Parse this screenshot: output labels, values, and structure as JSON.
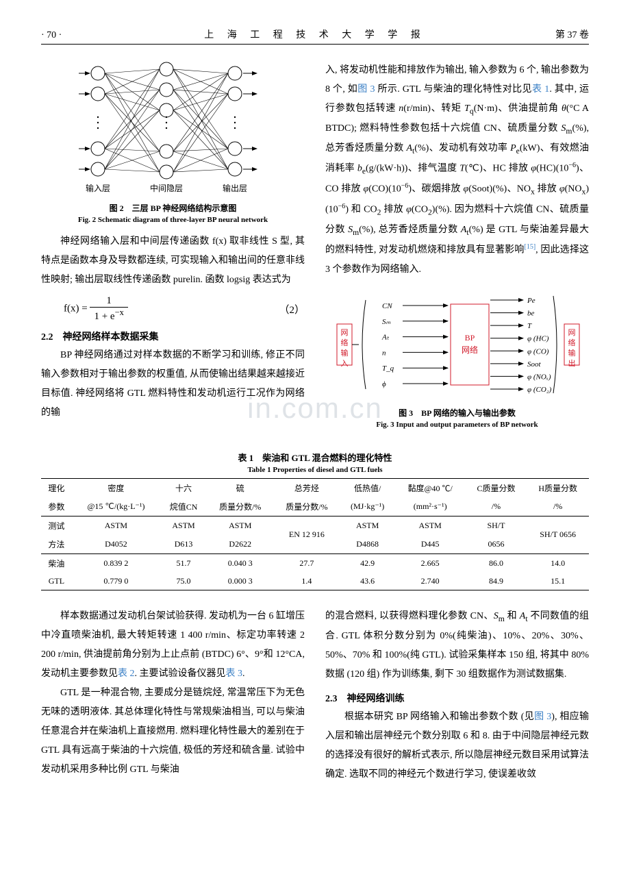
{
  "header": {
    "page_label_left": "· 70 ·",
    "journal_title": "上 海 工 程 技 术 大 学 学 报",
    "volume_label": "第 37 卷"
  },
  "fig2": {
    "caption_cn": "图 2　三层 BP 神经网络结构示意图",
    "caption_en": "Fig. 2   Schematic diagram of three-layer BP neural network",
    "layer_labels": [
      "输入层",
      "中间隐层",
      "输出层"
    ],
    "node_fill": "#ffffff",
    "node_stroke": "#000000",
    "edge_color": "#000000",
    "arrow_color": "#000000",
    "layer_x": [
      40,
      140,
      240
    ],
    "input_y": [
      18,
      48,
      128,
      158
    ],
    "hidden_y": [
      12,
      42,
      72,
      132,
      162
    ],
    "output_y": [
      18,
      48,
      128,
      158
    ],
    "dots_y": [
      82,
      90,
      98
    ],
    "node_r": 10
  },
  "intro_para": "神经网络输入层和中间层传递函数 f(x) 取非线性 S 型, 其特点是函数本身及导数都连续, 可实现输入和输出间的任意非线性映射; 输出层取线性传递函数 purelin. 函数 logsig 表达式为",
  "equation": {
    "lhs": "f(x) =",
    "num": "1",
    "den": "1 + e",
    "den_sup": "−x",
    "num_label": "（2）"
  },
  "sec22_title": "2.2　神经网络样本数据采集",
  "sec22_para": "BP 神经网络通过对样本数据的不断学习和训练, 修正不同输入参数相对于输出参数的权重值, 从而使输出结果越来越接近目标值. 神经网络将 GTL 燃料特性和发动机运行工况作为网络的输",
  "right_para": "入, 将发动机性能和排放作为输出, 输入参数为 6 个, 输出参数为 8 个, 如<span class=\"blue\">图 3</span> 所示. GTL 与柴油的理化特性对比见<span class=\"blue\">表 1</span>. 其中, 运行参数包括转速 <span class=\"it\">n</span>(r/min)、转矩 <span class=\"it\">T</span><sub>q</sub>(N·m)、供油提前角 <span class=\"it\">θ</span>(°C A BTDC); 燃料特性参数包括十六烷值 CN、硫质量分数 <span class=\"it\">S</span><sub>m</sub>(%), 总芳香烃质量分数 <span class=\"it\">A</span><sub>t</sub>(%)、发动机有效功率 <span class=\"it\">P</span><sub>e</sub>(kW)、有效燃油消耗率 <span class=\"it\">b</span><sub>e</sub>(g/(kW·h))、排气温度 <span class=\"it\">T</span>(℃)、HC 排放 <span class=\"it\">φ</span>(HC)(10<sup>−6</sup>)、CO 排放 <span class=\"it\">φ</span>(CO)(10<sup>−6</sup>)、碳烟排放 <span class=\"it\">φ</span>(Soot)(%)、NO<sub>x</sub> 排放 <span class=\"it\">φ</span>(NO<sub>x</sub>)(10<sup>−6</sup>) 和 CO<sub>2</sub> 排放 <span class=\"it\">φ</span>(CO<sub>2</sub>)(%). 因为燃料十六烷值 CN、硫质量分数 <span class=\"it\">S</span><sub>m</sub>(%), 总芳香烃质量分数 <span class=\"it\">A</span><sub>t</sub>(%) 是 GTL 与柴油差异最大的燃料特性, 对发动机燃烧和排放具有显著影响<sup class=\"blue\">[15]</sup>, 因此选择这 3 个参数作为网络输入.",
  "fig3": {
    "caption_cn": "图 3　BP 网络的输入与输出参数",
    "caption_en": "Fig. 3   Input and output parameters of BP network",
    "left_box": "网络输入",
    "center_box_top": "BP",
    "center_box_bottom": "网络",
    "right_box": "网络输出",
    "inputs": [
      "CN",
      "Sₘ",
      "Aₜ",
      "n",
      "T_q",
      "ϕ"
    ],
    "outputs": [
      "Pe",
      "be",
      "T",
      "φ (HC)",
      "φ (CO)",
      "Soot",
      "φ (NOₓ)",
      "φ (CO₂)"
    ],
    "box_stroke": "#d11a2a",
    "text_color_red": "#d11a2a",
    "line_color": "#000000"
  },
  "table1": {
    "caption_cn": "表 1　柴油和 GTL 混合燃料的理化特性",
    "caption_en": "Table 1   Properties of diesel and GTL fuels",
    "head_row1": [
      "理化",
      "密度",
      "十六",
      "硫",
      "总芳烃",
      "低热值/",
      "黏度@40 ℃/",
      "C质量分数",
      "H质量分数"
    ],
    "head_row2": [
      "参数",
      "@15 ℃/(kg·L⁻¹)",
      "烷值CN",
      "质量分数/%",
      "质量分数/%",
      "(MJ·kg⁻¹)",
      "(mm²·s⁻¹)",
      "/%",
      "/%"
    ],
    "method_rows": [
      [
        "测试",
        "ASTM",
        "ASTM",
        "ASTM",
        "",
        "ASTM",
        "ASTM",
        "SH/T",
        ""
      ],
      [
        "方法",
        "D4052",
        "D613",
        "D2622",
        "EN 12 916",
        "D4868",
        "D445",
        "0656",
        "SH/T 0656"
      ]
    ],
    "data_rows": [
      [
        "柴油",
        "0.839 2",
        "51.7",
        "0.040 3",
        "27.7",
        "42.9",
        "2.665",
        "86.0",
        "14.0"
      ],
      [
        "GTL",
        "0.779 0",
        "75.0",
        "0.000 3",
        "1.4",
        "43.6",
        "2.740",
        "84.9",
        "15.1"
      ]
    ]
  },
  "bottom_left_p1": "样本数据通过发动机台架试验获得. 发动机为一台 6 缸增压中冷直喷柴油机, 最大转矩转速 1 400 r/min、标定功率转速 2 200 r/min, 供油提前角分别为上止点前 (BTDC) 6°、9°和 12°CA, 发动机主要参数见<span class=\"blue\">表 2</span>. 主要试验设备仪器见<span class=\"blue\">表 3</span>.",
  "bottom_left_p2": "GTL 是一种混合物, 主要成分是链烷烃, 常温常压下为无色无味的透明液体. 其总体理化特性与常规柴油相当, 可以与柴油任意混合并在柴油机上直接燃用. 燃料理化特性最大的差别在于 GTL 具有远高于柴油的十六烷值, 极低的芳烃和硫含量. 试验中发动机采用多种比例 GTL 与柴油",
  "bottom_right_p1": "的混合燃料, 以获得燃料理化参数 CN、<span class=\"it\">S</span><sub>m</sub> 和 <span class=\"it\">A</span><sub>t</sub> 不同数值的组合. GTL 体积分数分别为 0%(纯柴油)、10%、20%、30%、50%、70% 和 100%(纯 GTL). 试验采集样本 150 组, 将其中 80% 数据 (120 组) 作为训练集, 剩下 30 组数据作为测试数据集.",
  "sec23_title": "2.3　神经网络训练",
  "bottom_right_p2": "根据本研究 BP 网络输入和输出参数个数 (见<span class=\"blue\">图 3</span>), 相应输入层和输出层神经元个数分别取 6 和 8. 由于中间隐层神经元数的选择没有很好的解析式表示, 所以隐层神经元数目采用试算法确定. 选取不同的神经元个数进行学习, 使误差收敛",
  "watermark_text": "in.com.cn"
}
